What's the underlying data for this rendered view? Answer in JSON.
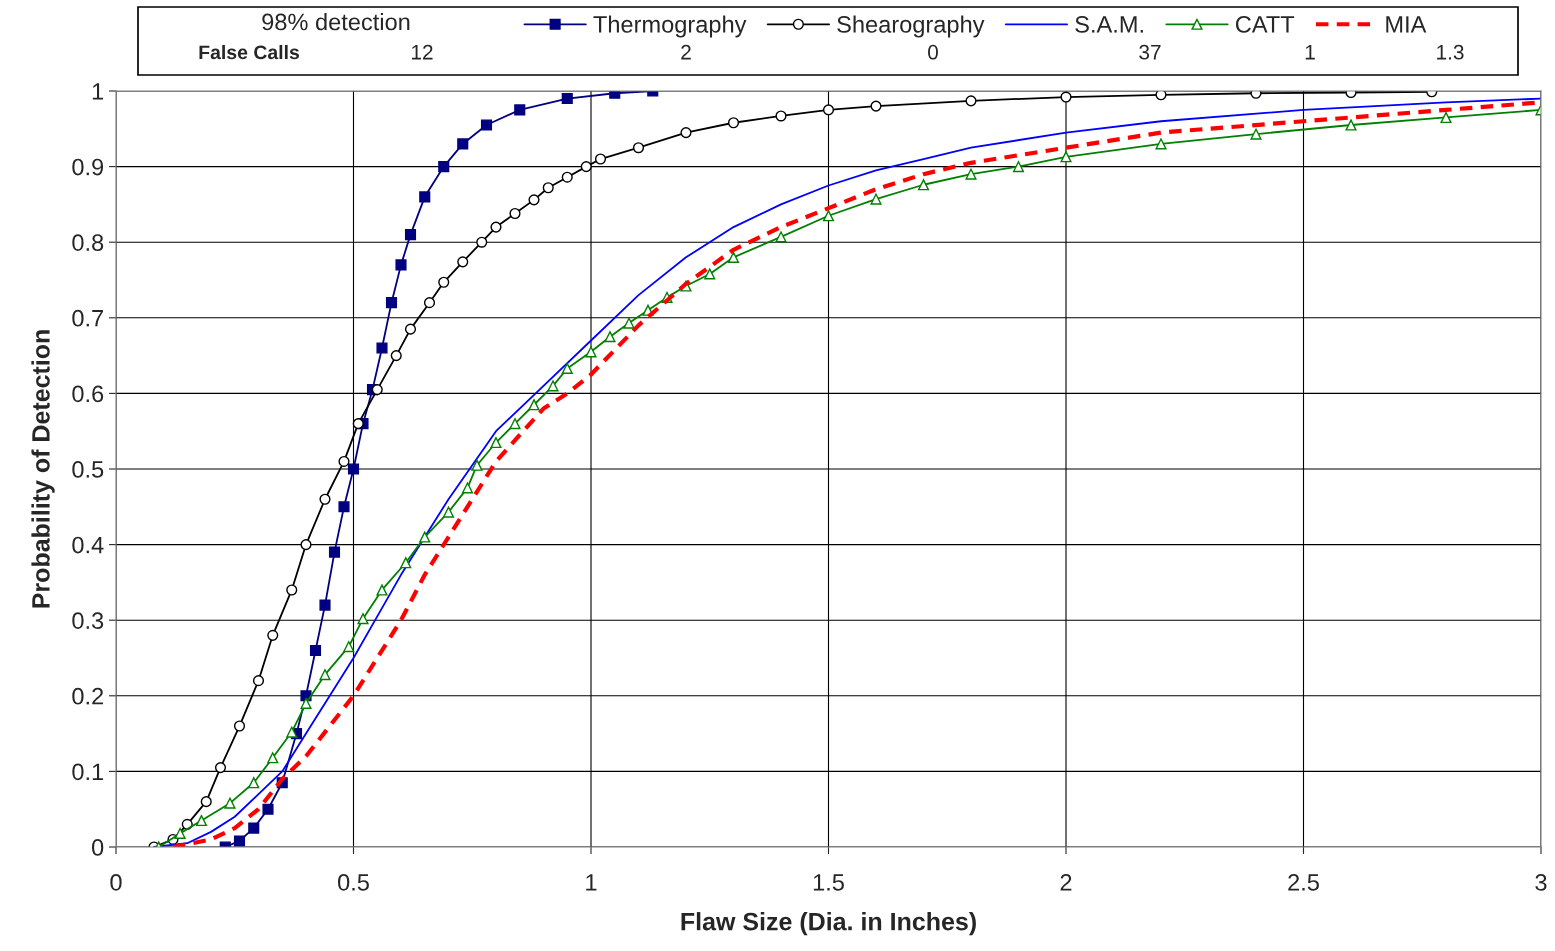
{
  "chart_data": {
    "type": "line",
    "xlabel": "Flaw Size (Dia. in Inches)",
    "ylabel": "Probability of Detection",
    "xlim": [
      0,
      3
    ],
    "ylim": [
      0,
      1
    ],
    "xticks": [
      0,
      0.5,
      1,
      1.5,
      2,
      2.5,
      3
    ],
    "yticks": [
      0,
      0.1,
      0.2,
      0.3,
      0.4,
      0.5,
      0.6,
      0.7,
      0.8,
      0.9,
      1
    ],
    "grid": true,
    "legend": "top",
    "annotations": [
      "98% detection",
      "False Calls",
      "12",
      "2",
      "0",
      "37",
      "1",
      "1.3"
    ],
    "series": [
      {
        "name": "Thermography",
        "color": "#000080",
        "marker": "square",
        "line_style": "solid",
        "x": [
          0.23,
          0.26,
          0.29,
          0.32,
          0.35,
          0.38,
          0.4,
          0.42,
          0.44,
          0.46,
          0.48,
          0.5,
          0.52,
          0.54,
          0.56,
          0.58,
          0.6,
          0.62,
          0.65,
          0.69,
          0.73,
          0.78,
          0.85,
          0.95,
          1.05,
          1.13
        ],
        "values": [
          0,
          0.008,
          0.025,
          0.05,
          0.085,
          0.15,
          0.2,
          0.26,
          0.32,
          0.39,
          0.45,
          0.5,
          0.56,
          0.605,
          0.66,
          0.72,
          0.77,
          0.81,
          0.86,
          0.9,
          0.93,
          0.955,
          0.975,
          0.99,
          0.997,
          1.0
        ]
      },
      {
        "name": "Shearography",
        "color": "#000000",
        "marker": "circle",
        "line_style": "solid",
        "x": [
          0.08,
          0.12,
          0.15,
          0.19,
          0.22,
          0.26,
          0.3,
          0.33,
          0.37,
          0.4,
          0.44,
          0.48,
          0.51,
          0.55,
          0.59,
          0.62,
          0.66,
          0.69,
          0.73,
          0.77,
          0.8,
          0.84,
          0.88,
          0.91,
          0.95,
          0.99,
          1.02,
          1.1,
          1.2,
          1.3,
          1.4,
          1.5,
          1.6,
          1.8,
          2.0,
          2.2,
          2.4,
          2.6,
          2.77
        ],
        "values": [
          0,
          0.01,
          0.03,
          0.06,
          0.105,
          0.16,
          0.22,
          0.28,
          0.34,
          0.4,
          0.46,
          0.51,
          0.56,
          0.605,
          0.65,
          0.685,
          0.72,
          0.747,
          0.774,
          0.8,
          0.82,
          0.838,
          0.856,
          0.872,
          0.886,
          0.9,
          0.91,
          0.925,
          0.945,
          0.958,
          0.967,
          0.975,
          0.98,
          0.987,
          0.992,
          0.995,
          0.997,
          0.998,
          0.999
        ]
      },
      {
        "name": "S.A.M.",
        "color": "#0000ff",
        "marker": "none",
        "line_style": "solid",
        "x": [
          0.08,
          0.15,
          0.2,
          0.25,
          0.3,
          0.35,
          0.4,
          0.45,
          0.5,
          0.55,
          0.6,
          0.65,
          0.7,
          0.8,
          0.9,
          1.0,
          1.1,
          1.2,
          1.3,
          1.4,
          1.5,
          1.6,
          1.7,
          1.8,
          2.0,
          2.2,
          2.5,
          2.8,
          3.0
        ],
        "values": [
          0,
          0.005,
          0.02,
          0.04,
          0.07,
          0.1,
          0.15,
          0.2,
          0.25,
          0.305,
          0.36,
          0.41,
          0.46,
          0.55,
          0.61,
          0.67,
          0.73,
          0.78,
          0.82,
          0.85,
          0.875,
          0.895,
          0.91,
          0.925,
          0.945,
          0.96,
          0.975,
          0.985,
          0.99
        ]
      },
      {
        "name": "CATT",
        "color": "#008000",
        "marker": "triangle",
        "line_style": "solid",
        "x": [
          0.09,
          0.135,
          0.18,
          0.24,
          0.29,
          0.33,
          0.37,
          0.4,
          0.44,
          0.49,
          0.52,
          0.56,
          0.61,
          0.65,
          0.7,
          0.74,
          0.76,
          0.8,
          0.84,
          0.88,
          0.92,
          0.95,
          1.0,
          1.04,
          1.08,
          1.12,
          1.16,
          1.2,
          1.25,
          1.3,
          1.4,
          1.5,
          1.6,
          1.7,
          1.8,
          1.9,
          2.0,
          2.2,
          2.4,
          2.6,
          2.8,
          3.0
        ],
        "values": [
          0,
          0.018,
          0.035,
          0.058,
          0.085,
          0.118,
          0.152,
          0.19,
          0.228,
          0.265,
          0.302,
          0.34,
          0.376,
          0.41,
          0.443,
          0.475,
          0.505,
          0.535,
          0.56,
          0.585,
          0.61,
          0.633,
          0.655,
          0.675,
          0.693,
          0.71,
          0.727,
          0.742,
          0.758,
          0.78,
          0.807,
          0.835,
          0.857,
          0.876,
          0.89,
          0.9,
          0.913,
          0.93,
          0.943,
          0.955,
          0.965,
          0.975
        ]
      },
      {
        "name": "MIA",
        "color": "#ff0000",
        "marker": "none",
        "line_style": "dashed",
        "x": [
          0.12,
          0.2,
          0.25,
          0.3,
          0.35,
          0.4,
          0.45,
          0.5,
          0.55,
          0.6,
          0.65,
          0.7,
          0.75,
          0.8,
          0.85,
          0.9,
          0.95,
          1.0,
          1.1,
          1.2,
          1.3,
          1.4,
          1.5,
          1.6,
          1.7,
          1.8,
          2.0,
          2.2,
          2.5,
          2.8,
          3.0
        ],
        "values": [
          0,
          0.01,
          0.025,
          0.05,
          0.09,
          0.12,
          0.16,
          0.2,
          0.25,
          0.3,
          0.36,
          0.41,
          0.46,
          0.51,
          0.545,
          0.58,
          0.6,
          0.625,
          0.69,
          0.745,
          0.79,
          0.82,
          0.845,
          0.87,
          0.89,
          0.905,
          0.925,
          0.945,
          0.96,
          0.975,
          0.985
        ]
      }
    ]
  }
}
